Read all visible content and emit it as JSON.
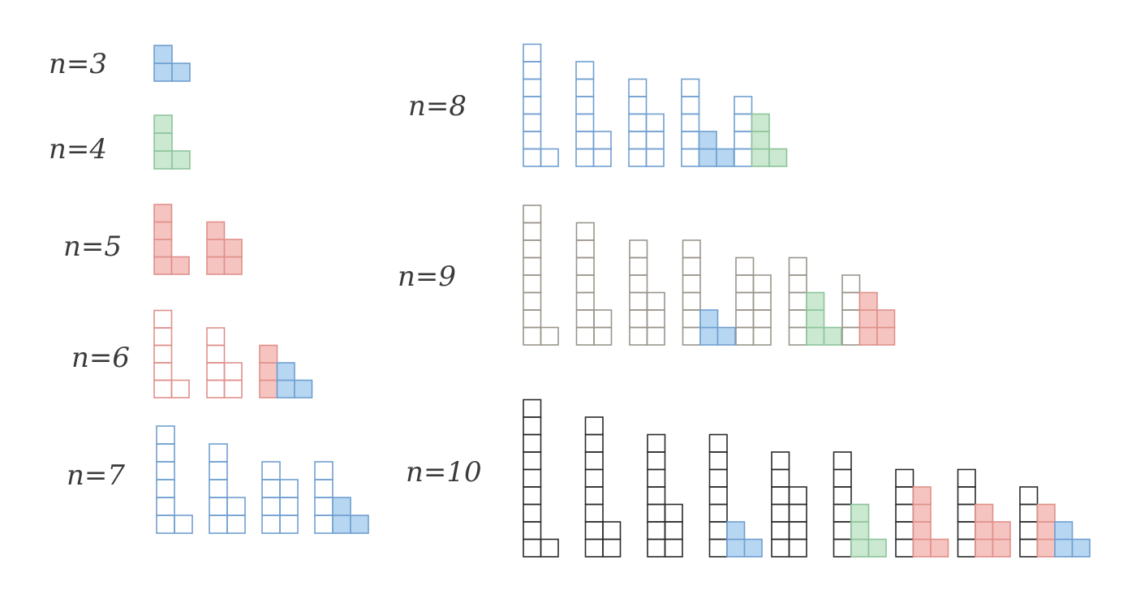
{
  "colors": {
    "paper": "#ffffff",
    "blue": "#6f9fd0",
    "blue_fill": "#b7d6f1",
    "green": "#8dc49a",
    "green_fill": "#cbe8d1",
    "red": "#e0908a",
    "red_fill": "#f6c4c0",
    "grey": "#9a958c",
    "black": "#2a2a2a"
  },
  "rows": [
    {
      "label": "n=3",
      "outline": "blue",
      "figures": [
        {
          "cols": [
            {
              "h": 2,
              "fill": "blue"
            },
            {
              "h": 1,
              "fill": "blue"
            }
          ]
        }
      ]
    },
    {
      "label": "n=4",
      "outline": "green",
      "figures": [
        {
          "cols": [
            {
              "h": 3,
              "fill": "green"
            },
            {
              "h": 1,
              "fill": "green"
            }
          ]
        }
      ]
    },
    {
      "label": "n=5",
      "outline": "red",
      "figures": [
        {
          "cols": [
            {
              "h": 4,
              "fill": "red"
            },
            {
              "h": 1,
              "fill": "red"
            }
          ]
        },
        {
          "cols": [
            {
              "h": 3,
              "fill": "red"
            },
            {
              "h": 2,
              "fill": "red"
            }
          ]
        }
      ]
    },
    {
      "label": "n=6",
      "outline": "red",
      "figures": [
        {
          "cols": [
            {
              "h": 5,
              "fill": null
            },
            {
              "h": 1,
              "fill": null
            }
          ]
        },
        {
          "cols": [
            {
              "h": 4,
              "fill": null
            },
            {
              "h": 2,
              "fill": null
            }
          ]
        },
        {
          "cols": [
            {
              "h": 3,
              "fill": "red"
            },
            {
              "h": 2,
              "fill": "blue"
            },
            {
              "h": 1,
              "fill": "blue"
            }
          ]
        }
      ]
    },
    {
      "label": "n=7",
      "outline": "blue",
      "figures": [
        {
          "cols": [
            {
              "h": 6,
              "fill": null
            },
            {
              "h": 1,
              "fill": null
            }
          ]
        },
        {
          "cols": [
            {
              "h": 5,
              "fill": null
            },
            {
              "h": 2,
              "fill": null
            }
          ]
        },
        {
          "cols": [
            {
              "h": 4,
              "fill": null
            },
            {
              "h": 3,
              "fill": null
            }
          ]
        },
        {
          "cols": [
            {
              "h": 4,
              "fill": null
            },
            {
              "h": 2,
              "fill": "blue"
            },
            {
              "h": 1,
              "fill": "blue"
            }
          ]
        }
      ]
    },
    {
      "label": "n=8",
      "outline": "blue",
      "figures": [
        {
          "cols": [
            {
              "h": 7,
              "fill": null
            },
            {
              "h": 1,
              "fill": null
            }
          ]
        },
        {
          "cols": [
            {
              "h": 6,
              "fill": null
            },
            {
              "h": 2,
              "fill": null
            }
          ]
        },
        {
          "cols": [
            {
              "h": 5,
              "fill": null
            },
            {
              "h": 3,
              "fill": null
            }
          ]
        },
        {
          "cols": [
            {
              "h": 5,
              "fill": null
            },
            {
              "h": 2,
              "fill": "blue"
            },
            {
              "h": 1,
              "fill": "blue"
            }
          ]
        },
        {
          "cols": [
            {
              "h": 4,
              "fill": null
            },
            {
              "h": 3,
              "fill": "green"
            },
            {
              "h": 1,
              "fill": "green"
            }
          ]
        }
      ]
    },
    {
      "label": "n=9",
      "outline": "grey",
      "figures": [
        {
          "cols": [
            {
              "h": 8,
              "fill": null
            },
            {
              "h": 1,
              "fill": null
            }
          ]
        },
        {
          "cols": [
            {
              "h": 7,
              "fill": null
            },
            {
              "h": 2,
              "fill": null
            }
          ]
        },
        {
          "cols": [
            {
              "h": 6,
              "fill": null
            },
            {
              "h": 3,
              "fill": null
            }
          ]
        },
        {
          "cols": [
            {
              "h": 6,
              "fill": null
            },
            {
              "h": 2,
              "fill": "blue"
            },
            {
              "h": 1,
              "fill": "blue"
            }
          ]
        },
        {
          "cols": [
            {
              "h": 5,
              "fill": null
            },
            {
              "h": 4,
              "fill": null
            }
          ]
        },
        {
          "cols": [
            {
              "h": 5,
              "fill": null
            },
            {
              "h": 3,
              "fill": "green"
            },
            {
              "h": 1,
              "fill": "green"
            }
          ]
        },
        {
          "cols": [
            {
              "h": 4,
              "fill": null
            },
            {
              "h": 3,
              "fill": "red"
            },
            {
              "h": 2,
              "fill": "red"
            }
          ]
        }
      ]
    },
    {
      "label": "n=10",
      "outline": "black",
      "figures": [
        {
          "cols": [
            {
              "h": 9,
              "fill": null
            },
            {
              "h": 1,
              "fill": null
            }
          ]
        },
        {
          "cols": [
            {
              "h": 8,
              "fill": null
            },
            {
              "h": 2,
              "fill": null
            }
          ]
        },
        {
          "cols": [
            {
              "h": 7,
              "fill": null
            },
            {
              "h": 3,
              "fill": null
            }
          ]
        },
        {
          "cols": [
            {
              "h": 7,
              "fill": null
            },
            {
              "h": 2,
              "fill": "blue"
            },
            {
              "h": 1,
              "fill": "blue"
            }
          ]
        },
        {
          "cols": [
            {
              "h": 6,
              "fill": null
            },
            {
              "h": 4,
              "fill": null
            }
          ]
        },
        {
          "cols": [
            {
              "h": 6,
              "fill": null
            },
            {
              "h": 3,
              "fill": "green"
            },
            {
              "h": 1,
              "fill": "green"
            }
          ]
        },
        {
          "cols": [
            {
              "h": 5,
              "fill": null
            },
            {
              "h": 4,
              "fill": "red"
            },
            {
              "h": 1,
              "fill": "red"
            }
          ]
        },
        {
          "cols": [
            {
              "h": 5,
              "fill": null
            },
            {
              "h": 3,
              "fill": "red"
            },
            {
              "h": 2,
              "fill": "red"
            }
          ]
        },
        {
          "cols": [
            {
              "h": 4,
              "fill": null
            },
            {
              "h": 3,
              "fill": "red"
            },
            {
              "h": 2,
              "fill": "blue"
            },
            {
              "h": 1,
              "fill": "blue"
            }
          ]
        }
      ]
    }
  ]
}
